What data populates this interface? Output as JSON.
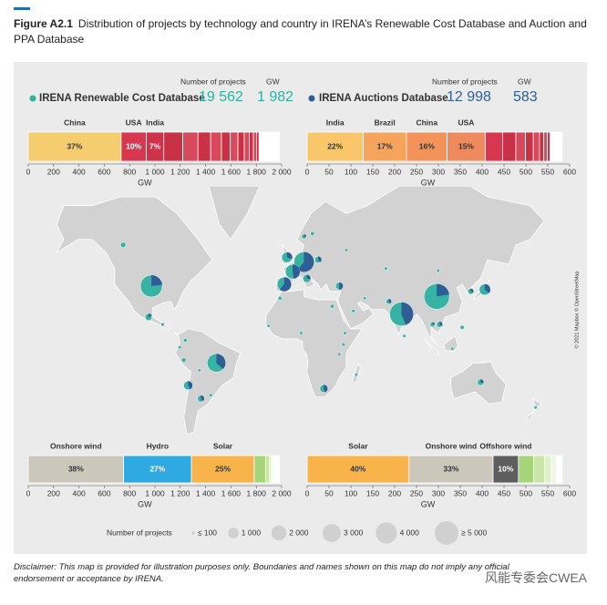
{
  "figure": {
    "label": "Figure A2.1",
    "title": "Distribution of projects by technology and country in IRENA’s Renewable Cost Database and Auction and PPA Database"
  },
  "chart_data": [
    {
      "type": "stacked_bar",
      "title": "IRENA Renewable Cost Database",
      "color": "#2bb3a0",
      "projects_heading": "Number of projects",
      "total_heading": "GW",
      "projects": {
        "value": 19562,
        "label": "19 562"
      },
      "total": {
        "value": 1982,
        "label": "1 982"
      },
      "x_label": "GW",
      "xlim": [
        0,
        2000
      ],
      "xticks": [
        0,
        200,
        400,
        600,
        800,
        {
          "value": 1000,
          "label": "1 000"
        },
        {
          "value": 1200,
          "label": "1 200"
        },
        {
          "value": 1400,
          "label": "1 400"
        },
        {
          "value": 1600,
          "label": "1 600"
        },
        {
          "value": 1800,
          "label": "1 800"
        },
        {
          "value": 2000,
          "label": "2 000"
        }
      ],
      "series": [
        {
          "name": "China",
          "color": "#f5cc6e",
          "values": [
            733
          ],
          "value_labels": [
            "37%"
          ]
        },
        {
          "name": "USA",
          "color": "#d8384f",
          "values": [
            198
          ],
          "value_labels": [
            "10%"
          ]
        },
        {
          "name": "India",
          "color": "#cf3349",
          "values": [
            139
          ],
          "value_labels": [
            "7%"
          ]
        },
        {
          "name": null,
          "color": "#c93246",
          "values": [
            150
          ]
        },
        {
          "name": null,
          "color": "#d64a5c",
          "values": [
            120
          ]
        },
        {
          "name": null,
          "color": "#c93246",
          "values": [
            100
          ]
        },
        {
          "name": null,
          "color": "#d64a5c",
          "values": [
            85
          ]
        },
        {
          "name": null,
          "color": "#c93246",
          "values": [
            70
          ]
        },
        {
          "name": null,
          "color": "#d64a5c",
          "values": [
            60
          ]
        },
        {
          "name": null,
          "color": "#c93246",
          "values": [
            50
          ]
        },
        {
          "name": null,
          "color": "#d64a5c",
          "values": [
            40
          ]
        },
        {
          "name": null,
          "color": "#c93246",
          "values": [
            32
          ]
        },
        {
          "name": null,
          "color": "#d64a5c",
          "values": [
            25
          ]
        },
        {
          "name": null,
          "color": "#c93246",
          "values": [
            20
          ]
        },
        {
          "name": null,
          "color": "#ffffff",
          "values": [
            160
          ]
        }
      ]
    },
    {
      "type": "stacked_bar",
      "title": "IRENA Auctions Database",
      "color": "#2d5f96",
      "projects_heading": "Number of projects",
      "total_heading": "GW",
      "projects": {
        "value": 12998,
        "label": "12 998"
      },
      "total": 583,
      "x_label": "GW",
      "xlim": [
        0,
        600
      ],
      "xticks": [
        0,
        50,
        100,
        150,
        200,
        250,
        300,
        350,
        400,
        450,
        500,
        550,
        600
      ],
      "series": [
        {
          "name": "India",
          "color": "#f9c66a",
          "values": [
            128
          ],
          "value_labels": [
            "22%"
          ]
        },
        {
          "name": "Brazil",
          "color": "#f6a35b",
          "values": [
            99
          ],
          "value_labels": [
            "17%"
          ]
        },
        {
          "name": "China",
          "color": "#f39359",
          "values": [
            93
          ],
          "value_labels": [
            "16%"
          ]
        },
        {
          "name": "USA",
          "color": "#ef8a5e",
          "values": [
            87
          ],
          "value_labels": [
            "15%"
          ]
        },
        {
          "name": null,
          "color": "#d8384f",
          "values": [
            40
          ]
        },
        {
          "name": null,
          "color": "#c93246",
          "values": [
            30
          ]
        },
        {
          "name": null,
          "color": "#d64a5c",
          "values": [
            22
          ]
        },
        {
          "name": null,
          "color": "#c93246",
          "values": [
            18
          ]
        },
        {
          "name": null,
          "color": "#d64a5c",
          "values": [
            14
          ]
        },
        {
          "name": null,
          "color": "#c93246",
          "values": [
            10
          ]
        },
        {
          "name": null,
          "color": "#d64a5c",
          "values": [
            8
          ]
        },
        {
          "name": null,
          "color": "#c93246",
          "values": [
            6
          ]
        },
        {
          "name": null,
          "color": "#ffffff",
          "values": [
            28
          ]
        }
      ]
    },
    {
      "type": "bubble_map",
      "credit": "© 2021 Mapbox © OpenStreetMap",
      "lon": [
        104,
        -98,
        79,
        10,
        -52,
        2,
        -4,
        -2,
        138,
        12,
        128,
        -100,
        -72,
        -63,
        24,
        -118,
        135,
        20,
        35,
        106,
        70,
        101,
        10,
        16,
        122,
        -75,
        -90,
        -74,
        -7,
        30,
        38,
        115,
        174,
        -56,
        40,
        68,
        45,
        53,
        8,
        39,
        -64,
        -78,
        -15,
        35,
        47,
        105,
        81
      ],
      "lat": [
        33,
        39,
        22,
        51,
        -12,
        46.5,
        40,
        53,
        37,
        43,
        36,
        20,
        -27,
        -35,
        -29,
        58,
        -25,
        52,
        39,
        15,
        30,
        15,
        61,
        62,
        13,
        -10,
        15,
        4,
        32,
        27,
        1,
        -2,
        -40,
        -33,
        56,
        48,
        24,
        32,
        9,
        9,
        -17,
        -1,
        14,
        -6,
        -20,
        47,
        7
      ],
      "series": [
        {
          "color": "#36b3a2",
          "values": [
            4500,
            3300,
            2800,
            1400,
            1900,
            1000,
            700,
            700,
            700,
            400,
            200,
            350,
            400,
            250,
            300,
            250,
            250,
            250,
            250,
            200,
            150,
            150,
            150,
            100,
            120,
            100,
            80,
            80,
            80,
            80,
            80,
            80,
            60,
            60,
            60,
            60,
            50,
            50,
            40,
            40,
            40,
            40,
            40,
            40,
            20,
            30,
            30
          ]
        },
        {
          "color": "#2d5f96",
          "values": [
            1300,
            1000,
            2200,
            2200,
            1100,
            900,
            1100,
            300,
            400,
            150,
            100,
            80,
            300,
            150,
            250,
            0,
            100,
            150,
            250,
            100,
            100,
            50,
            50,
            50,
            30,
            80,
            30,
            40,
            50,
            60,
            30,
            20,
            10,
            40,
            20,
            40,
            60,
            10,
            20,
            10,
            20,
            10,
            20,
            10,
            10,
            10,
            20
          ]
        }
      ],
      "size_legend": {
        "title": "Number of projects",
        "values": [
          {
            "value": 100,
            "label": "≤ 100"
          },
          {
            "value": 1000,
            "label": "1 000"
          },
          {
            "value": 2000,
            "label": "2 000"
          },
          {
            "value": 3000,
            "label": "3 000"
          },
          {
            "value": 4000,
            "label": "4 000"
          },
          {
            "value": 5000,
            "label": "≥ 5 000"
          }
        ]
      }
    },
    {
      "type": "stacked_bar",
      "x_label": "GW",
      "xlim": [
        0,
        2000
      ],
      "xticks": [
        0,
        200,
        400,
        600,
        800,
        {
          "value": 1000,
          "label": "1 000"
        },
        {
          "value": 1200,
          "label": "1 200"
        },
        {
          "value": 1400,
          "label": "1 400"
        },
        {
          "value": 1600,
          "label": "1 600"
        },
        {
          "value": 1800,
          "label": "1 800"
        },
        {
          "value": 2000,
          "label": "2 000"
        }
      ],
      "series": [
        {
          "name": "Onshore wind",
          "color": "#cbc8bb",
          "values": [
            753
          ],
          "value_labels": [
            "38%"
          ]
        },
        {
          "name": "Hydro",
          "color": "#2ea9e1",
          "values": [
            535
          ],
          "value_labels": [
            "27%"
          ]
        },
        {
          "name": "Solar",
          "color": "#f8b34a",
          "values": [
            496
          ],
          "value_labels": [
            "25%"
          ]
        },
        {
          "name": null,
          "color": "#a6d47a",
          "values": [
            90
          ]
        },
        {
          "name": null,
          "color": "#c9e6a8",
          "values": [
            30
          ]
        },
        {
          "name": null,
          "color": "#dff0cc",
          "values": [
            15
          ]
        },
        {
          "name": null,
          "color": "#eef7e4",
          "values": [
            10
          ]
        },
        {
          "name": null,
          "color": "#ffffff",
          "values": [
            53
          ]
        }
      ]
    },
    {
      "type": "stacked_bar",
      "x_label": "GW",
      "xlim": [
        0,
        600
      ],
      "xticks": [
        0,
        50,
        100,
        150,
        200,
        250,
        300,
        350,
        400,
        450,
        500,
        550,
        600
      ],
      "series": [
        {
          "name": "Solar",
          "color": "#f8b34a",
          "values": [
            233
          ],
          "value_labels": [
            "40%"
          ]
        },
        {
          "name": "Onshore wind",
          "color": "#cbc8bb",
          "values": [
            192
          ],
          "value_labels": [
            "33%"
          ]
        },
        {
          "name": "Offshore wind",
          "color": "#5e5e5e",
          "values": [
            58
          ],
          "value_labels": [
            "10%"
          ]
        },
        {
          "name": null,
          "color": "#a6d47a",
          "values": [
            35
          ]
        },
        {
          "name": null,
          "color": "#c9e6a8",
          "values": [
            25
          ]
        },
        {
          "name": null,
          "color": "#dff0cc",
          "values": [
            15
          ]
        },
        {
          "name": null,
          "color": "#eef7e4",
          "values": [
            12
          ]
        },
        {
          "name": null,
          "color": "#ffffff",
          "values": [
            13
          ]
        }
      ]
    }
  ],
  "disclaimer": "Disclaimer: This map is provided for illustration purposes only. Boundaries and names shown on this map do not imply any official endorsement or acceptance by IRENA.",
  "watermark": "风能专委会CWEA"
}
